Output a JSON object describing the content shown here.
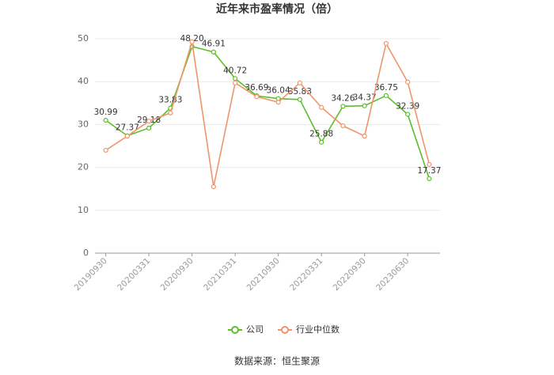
{
  "chart_data": {
    "type": "line",
    "title": "近年来市盈率情况（倍）",
    "categories": [
      "20190930",
      null,
      "20200331",
      null,
      "20200930",
      null,
      "20210331",
      null,
      "20210930",
      null,
      "20220331",
      null,
      "20220930",
      null,
      "20230630",
      null
    ],
    "series": [
      {
        "name": "公司",
        "color": "#5cbf2a",
        "values": [
          30.99,
          27.37,
          29.18,
          33.83,
          48.2,
          46.91,
          40.72,
          36.69,
          36.04,
          35.83,
          25.88,
          34.26,
          34.37,
          36.75,
          32.39,
          17.37
        ],
        "value_labels": [
          "30.99",
          "27.37",
          "29.18",
          "33.83",
          "48.20",
          "46.91",
          "40.72",
          "36.69",
          "36.04",
          "35.83",
          "25.88",
          "34.26",
          "34.37",
          "36.75",
          "32.39",
          "17.37"
        ]
      },
      {
        "name": "行业中位数",
        "color": "#f0956a",
        "values": [
          24.0,
          27.3,
          30.8,
          32.7,
          49.3,
          15.5,
          39.7,
          36.5,
          35.2,
          39.7,
          34.0,
          29.7,
          27.3,
          48.9,
          39.9,
          20.7
        ]
      }
    ],
    "ylim": [
      0,
      50
    ],
    "yticks": [
      0,
      10,
      20,
      30,
      40,
      50
    ],
    "grid": true,
    "legend": "bottom",
    "source": "数据来源：恒生聚源"
  }
}
